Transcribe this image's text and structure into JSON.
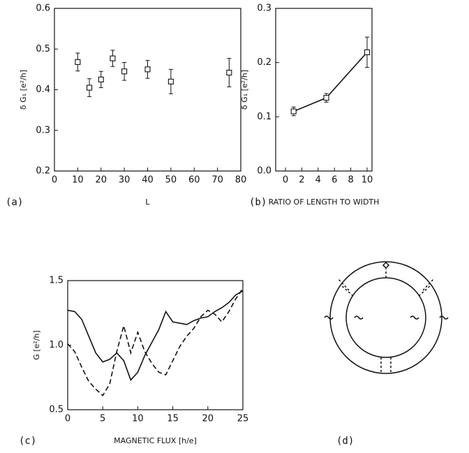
{
  "chart_data": [
    {
      "type": "scatter",
      "panel_label": "(a)",
      "xlabel": "L",
      "ylabel": "δ G₁ [e²/h]",
      "x": [
        10,
        15,
        20,
        25,
        30,
        40,
        50,
        75
      ],
      "series": [
        {
          "color": "#111111",
          "marker": "square",
          "values": [
            0.468,
            0.405,
            0.425,
            0.477,
            0.445,
            0.45,
            0.42,
            0.442
          ],
          "errors": [
            0.022,
            0.022,
            0.02,
            0.02,
            0.022,
            0.022,
            0.03,
            0.035
          ]
        }
      ],
      "xlim": [
        0,
        80
      ],
      "xticks": [
        0,
        10,
        20,
        30,
        40,
        50,
        60,
        70,
        80
      ],
      "ylim": [
        0.2,
        0.6
      ],
      "yticks": [
        0.2,
        0.3,
        0.4,
        0.5,
        0.6
      ]
    },
    {
      "type": "line",
      "panel_label": "(b)",
      "xlabel": "RATIO OF LENGTH TO WIDTH",
      "ylabel": "δ G₁ [e²/h]",
      "x": [
        1,
        5,
        10
      ],
      "series": [
        {
          "color": "#111111",
          "marker": "square",
          "values": [
            0.11,
            0.135,
            0.219
          ],
          "errors": [
            0.008,
            0.008,
            0.028
          ]
        }
      ],
      "xlim": [
        -1.2,
        10.6
      ],
      "xticks": [
        0,
        2,
        4,
        6,
        8,
        10
      ],
      "ylim": [
        0,
        0.3
      ],
      "yticks": [
        {
          "value": 0,
          "label": "0.0"
        },
        0.1,
        0.2,
        0.3
      ]
    },
    {
      "type": "line",
      "panel_label": "(c)",
      "xlabel": "MAGNETIC FLUX [h/e]",
      "ylabel": "G [e²/h]",
      "x": [
        0,
        1,
        2,
        3,
        4,
        5,
        6,
        7,
        8,
        9,
        10,
        11,
        12,
        13,
        14,
        15,
        16,
        17,
        18,
        19,
        20,
        21,
        22,
        23,
        24,
        25
      ],
      "series": [
        {
          "color": "#111111",
          "linestyle": "solid",
          "values": [
            1.27,
            1.26,
            1.2,
            1.07,
            0.94,
            0.87,
            0.89,
            0.94,
            0.88,
            0.73,
            0.79,
            0.92,
            1.02,
            1.12,
            1.26,
            1.18,
            1.17,
            1.16,
            1.19,
            1.21,
            1.22,
            1.26,
            1.29,
            1.33,
            1.39,
            1.42
          ]
        },
        {
          "color": "#111111",
          "linestyle": "dashed",
          "values": [
            1.01,
            0.95,
            0.83,
            0.72,
            0.66,
            0.61,
            0.7,
            0.95,
            1.15,
            0.94,
            1.1,
            0.95,
            0.86,
            0.79,
            0.77,
            0.88,
            0.99,
            1.07,
            1.13,
            1.22,
            1.27,
            1.24,
            1.18,
            1.26,
            1.36,
            1.44
          ]
        }
      ],
      "xlim": [
        0,
        25
      ],
      "xticks": [
        0,
        5,
        10,
        15,
        20,
        25
      ],
      "ylim": [
        0.5,
        1.5
      ],
      "yticks": [
        0.5,
        {
          "value": 1,
          "label": "1.0"
        },
        1.5
      ]
    }
  ],
  "diagram": {
    "panel_label": "(d)"
  }
}
